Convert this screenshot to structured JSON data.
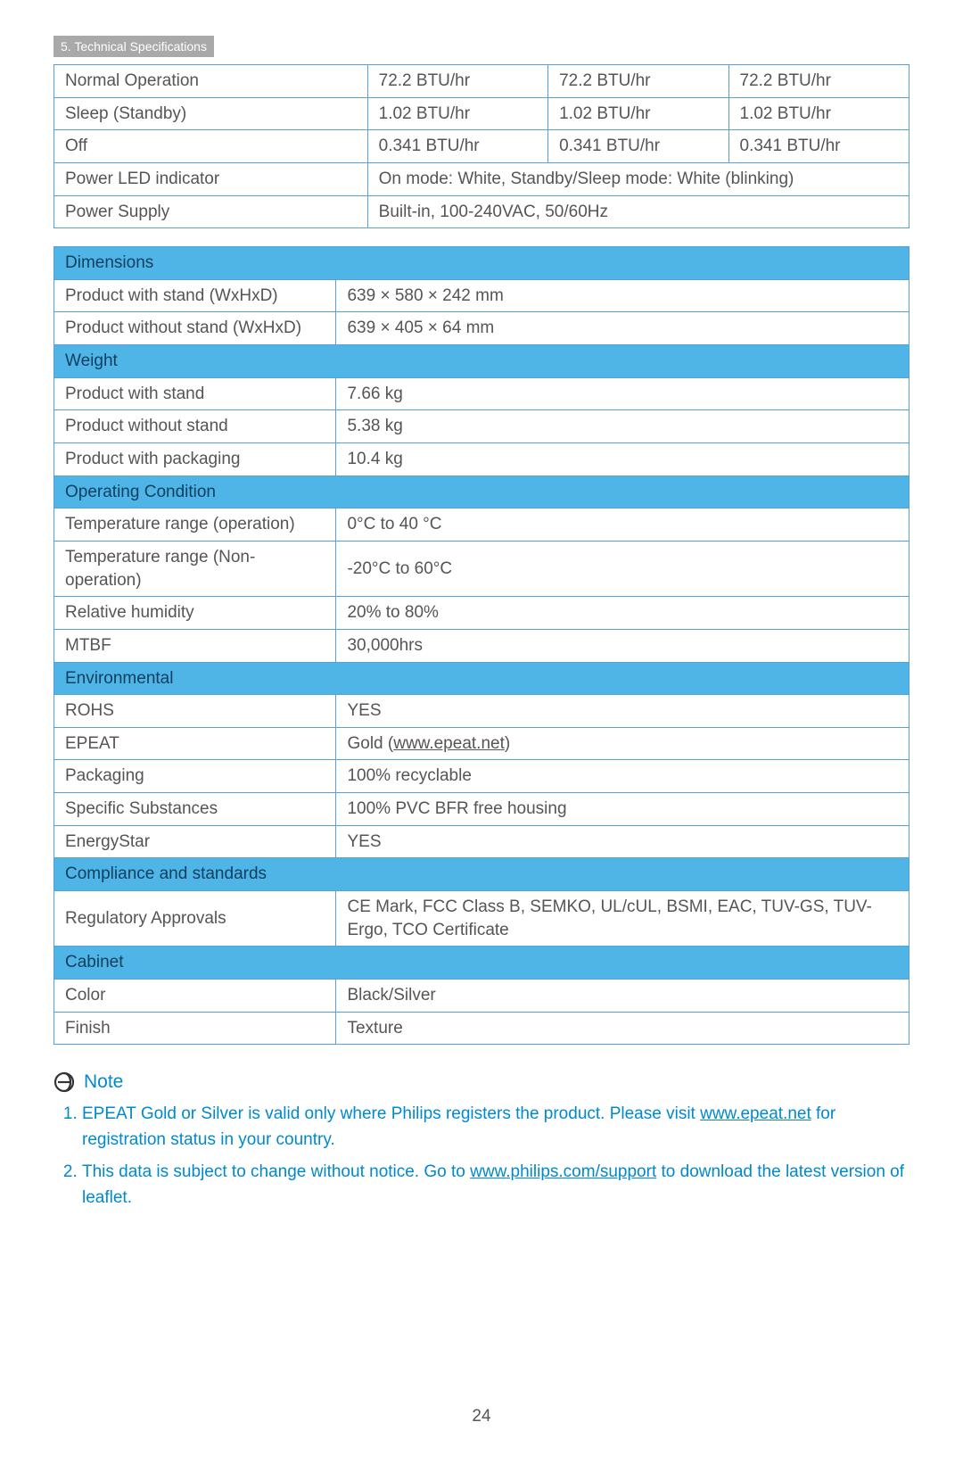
{
  "colors": {
    "header_bg": "#a9a9a9",
    "header_fg": "#ffffff",
    "border": "#5aa0d8",
    "section_bg": "#4fb4e6",
    "section_fg": "#104060",
    "text": "#555555",
    "accent": "#0089cf"
  },
  "page_header": "5. Technical Specifications",
  "table1": {
    "rows": [
      {
        "label": "Normal Operation",
        "c2": "72.2 BTU/hr",
        "c3": "72.2 BTU/hr",
        "c4": "72.2 BTU/hr"
      },
      {
        "label": "Sleep (Standby)",
        "c2": "1.02 BTU/hr",
        "c3": "1.02 BTU/hr",
        "c4": "1.02 BTU/hr"
      },
      {
        "label": "Off",
        "c2": "0.341 BTU/hr",
        "c3": "0.341 BTU/hr",
        "c4": "0.341 BTU/hr"
      },
      {
        "label": "Power LED indicator",
        "span": "On mode: White, Standby/Sleep mode: White (blinking)"
      },
      {
        "label": "Power Supply",
        "span": "Built-in, 100-240VAC, 50/60Hz"
      }
    ]
  },
  "table2": {
    "sections": [
      {
        "header": "Dimensions",
        "rows": [
          {
            "label": "Product with stand (WxHxD)",
            "value": "639 × 580 × 242 mm"
          },
          {
            "label": "Product without stand (WxHxD)",
            "value": "639 × 405 × 64 mm"
          }
        ]
      },
      {
        "header": "Weight",
        "rows": [
          {
            "label": "Product with stand",
            "value": "7.66 kg"
          },
          {
            "label": "Product without stand",
            "value": "5.38 kg"
          },
          {
            "label": "Product with packaging",
            "value": "10.4 kg"
          }
        ]
      },
      {
        "header": "Operating Condition",
        "rows": [
          {
            "label": "Temperature range (operation)",
            "value": "0°C to 40 °C"
          },
          {
            "label": "Temperature range (Non-operation)",
            "value": "-20°C to 60°C"
          },
          {
            "label": "Relative humidity",
            "value": "20% to 80%"
          },
          {
            "label": "MTBF",
            "value": "30,000hrs"
          }
        ]
      },
      {
        "header": "Environmental",
        "rows": [
          {
            "label": "ROHS",
            "value": "YES"
          },
          {
            "label": "EPEAT",
            "prefix": "Gold (",
            "link_text": "www.epeat.net",
            "suffix": ")"
          },
          {
            "label": "Packaging",
            "value": "100% recyclable"
          },
          {
            "label": "Specific Substances",
            "value": "100% PVC BFR free housing"
          },
          {
            "label": "EnergyStar",
            "value": "YES"
          }
        ]
      },
      {
        "header": "Compliance and standards",
        "rows": [
          {
            "label": "Regulatory Approvals",
            "value": "CE Mark, FCC Class B, SEMKO, UL/cUL, BSMI, EAC, TUV-GS, TUV-Ergo, TCO Certificate"
          }
        ]
      },
      {
        "header": "Cabinet",
        "rows": [
          {
            "label": "Color",
            "value": "Black/Silver"
          },
          {
            "label": "Finish",
            "value": "Texture"
          }
        ]
      }
    ]
  },
  "note": {
    "title": "Note",
    "items": [
      {
        "pre": "EPEAT Gold or Silver is valid only where Philips registers the product. Please visit ",
        "link": "www.epeat.net",
        "post": " for registration status in your country."
      },
      {
        "pre": "This data is subject to change without notice. Go to ",
        "link": "www.philips.com/support",
        "post": " to download the latest version of leaflet."
      }
    ]
  },
  "page_number": "24"
}
